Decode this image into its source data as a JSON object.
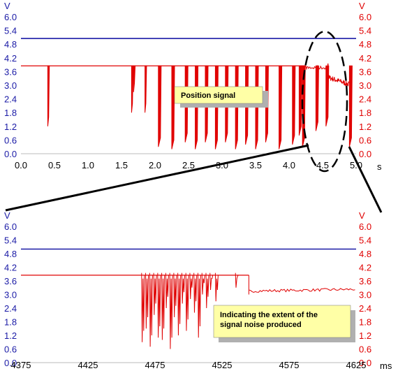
{
  "chart_data": [
    {
      "type": "line",
      "x_unit": "s",
      "y_unit_left": "V",
      "y_unit_right": "V",
      "xlim": [
        0.0,
        5.0
      ],
      "ylim": [
        0.0,
        6.0
      ],
      "x_ticks": [
        "0.0",
        "0.5",
        "1.0",
        "1.5",
        "2.0",
        "2.5",
        "3.0",
        "3.5",
        "4.0",
        "4.5",
        "5.0"
      ],
      "y_ticks": [
        "0.0",
        "0.6",
        "1.2",
        "1.8",
        "2.4",
        "3.0",
        "3.6",
        "4.2",
        "4.8",
        "5.4",
        "6.0"
      ],
      "annotation": "Position signal",
      "series": [
        {
          "color": "#1a1aa6",
          "x": [
            0.0,
            5.0
          ],
          "y": [
            5.05,
            5.05
          ]
        },
        {
          "color": "#e00000",
          "baseline": 3.85,
          "dips": [
            {
              "x": 0.4,
              "min": 1.2
            },
            {
              "x": 1.65,
              "min": 1.8
            },
            {
              "x": 1.68,
              "min": 2.7
            },
            {
              "x": 1.85,
              "min": 1.8
            },
            {
              "x": 2.05,
              "min": 0.3
            },
            {
              "x": 2.25,
              "min": 0.2
            },
            {
              "x": 2.45,
              "min": 0.5
            },
            {
              "x": 2.6,
              "min": 0.2
            },
            {
              "x": 2.75,
              "min": 0.5
            },
            {
              "x": 2.9,
              "min": 0.2
            },
            {
              "x": 3.05,
              "min": 0.5
            },
            {
              "x": 3.2,
              "min": 0.2
            },
            {
              "x": 3.35,
              "min": 0.4
            },
            {
              "x": 3.5,
              "min": 0.2
            },
            {
              "x": 3.65,
              "min": 0.5
            },
            {
              "x": 3.85,
              "min": 0.2
            },
            {
              "x": 4.05,
              "min": 0.4
            },
            {
              "x": 4.15,
              "min": 0.8
            },
            {
              "x": 4.2,
              "min": 0.3
            },
            {
              "x": 4.4,
              "min": 1.0
            },
            {
              "x": 4.55,
              "min": 1.2
            },
            {
              "x": 4.9,
              "min": 0.3
            }
          ],
          "tail": {
            "x": [
              4.6,
              4.7,
              4.8,
              4.9
            ],
            "y": [
              3.3,
              3.1,
              3.0,
              2.95
            ]
          }
        }
      ]
    },
    {
      "type": "line",
      "x_unit": "ms",
      "y_unit_left": "V",
      "y_unit_right": "V",
      "xlim": [
        4375,
        4625
      ],
      "ylim": [
        0.0,
        6.0
      ],
      "x_ticks": [
        "4375",
        "4425",
        "4475",
        "4525",
        "4575",
        "4625"
      ],
      "y_ticks": [
        "0.0",
        "0.6",
        "1.2",
        "1.8",
        "2.4",
        "3.0",
        "3.6",
        "4.2",
        "4.8",
        "5.4",
        "6.0"
      ],
      "annotation": "Indicating the extent of the signal noise produced",
      "series": [
        {
          "color": "#1a1aa6",
          "x": [
            4375,
            4625
          ],
          "y": [
            5.0,
            5.0
          ]
        },
        {
          "color": "#e00000",
          "baseline": 3.85,
          "noise_start": 4465,
          "noise_end": 4545,
          "dips": [
            {
              "x": 4465,
              "min": 0.9
            },
            {
              "x": 4468,
              "min": 1.5
            },
            {
              "x": 4471,
              "min": 0.7
            },
            {
              "x": 4474,
              "min": 2.1
            },
            {
              "x": 4477,
              "min": 1.1
            },
            {
              "x": 4480,
              "min": 1.0
            },
            {
              "x": 4483,
              "min": 2.4
            },
            {
              "x": 4486,
              "min": 0.6
            },
            {
              "x": 4489,
              "min": 2.0
            },
            {
              "x": 4492,
              "min": 1.2
            },
            {
              "x": 4495,
              "min": 2.6
            },
            {
              "x": 4498,
              "min": 1.4
            },
            {
              "x": 4501,
              "min": 2.8
            },
            {
              "x": 4504,
              "min": 2.2
            },
            {
              "x": 4507,
              "min": 1.1
            },
            {
              "x": 4510,
              "min": 3.0
            },
            {
              "x": 4513,
              "min": 2.4
            },
            {
              "x": 4516,
              "min": 3.2
            },
            {
              "x": 4520,
              "min": 2.7
            },
            {
              "x": 4535,
              "min": 3.3
            }
          ],
          "step_x": 4545,
          "tail_level": 3.15
        }
      ]
    }
  ],
  "annotations": {
    "top_label": "Position signal",
    "bottom_label_line1": "Indicating the extent of the",
    "bottom_label_line2": "signal noise produced"
  }
}
